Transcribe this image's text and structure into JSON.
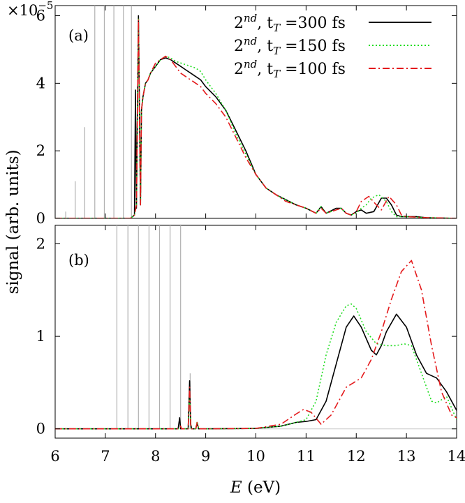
{
  "chart_data": [
    {
      "panel_label": "(a)",
      "type": "line",
      "multiplier_label": "×10",
      "multiplier_exp": "−5",
      "xlim": [
        6,
        14
      ],
      "ylim": [
        0,
        6.3
      ],
      "yticks": [
        "0",
        "2",
        "4",
        "6"
      ],
      "ylabel": "signal (arb. units)",
      "legend": {
        "placement": "top-right",
        "items": [
          {
            "prefix": "2",
            "sup": "nd",
            "sep": ", t",
            "sub": "T",
            "rest": " =300 fs",
            "color": "#000000",
            "dash": "solid"
          },
          {
            "prefix": "2",
            "sup": "nd",
            "sep": ", t",
            "sub": "T",
            "rest": " =150 fs",
            "color": "#22dd22",
            "dash": "dotted"
          },
          {
            "prefix": "2",
            "sup": "nd",
            "sep": ", t",
            "sub": "T",
            "rest": " =100 fs",
            "color": "#e41a1c",
            "dash": "dashdot"
          }
        ]
      },
      "gray_lines": [
        {
          "x": 6.21,
          "y": 0.2
        },
        {
          "x": 6.4,
          "y": 1.1
        },
        {
          "x": 6.59,
          "y": 2.7
        },
        {
          "x": 6.79,
          "y": 6.3
        },
        {
          "x": 6.98,
          "y": 6.3
        },
        {
          "x": 7.17,
          "y": 6.3
        },
        {
          "x": 7.36,
          "y": 6.3
        },
        {
          "x": 7.52,
          "y": 6.3
        }
      ],
      "series": [
        {
          "color": "#000000",
          "x": [
            6.0,
            7.5,
            7.58,
            7.6,
            7.62,
            7.66,
            7.7,
            7.72,
            7.75,
            7.8,
            7.85,
            7.9,
            8.0,
            8.1,
            8.2,
            8.3,
            8.4,
            8.5,
            8.6,
            8.7,
            8.8,
            8.9,
            9.0,
            9.2,
            9.4,
            9.6,
            9.8,
            10.0,
            10.2,
            10.4,
            10.6,
            10.8,
            11.0,
            11.2,
            11.3,
            11.4,
            11.6,
            11.7,
            11.8,
            11.9,
            12.0,
            12.1,
            12.2,
            12.35,
            12.5,
            12.6,
            12.7,
            12.8,
            12.9,
            13.0,
            13.2,
            13.4,
            14.0
          ],
          "y": [
            0.0,
            0.0,
            0.1,
            3.8,
            0.3,
            6.0,
            0.4,
            3.2,
            3.6,
            4.0,
            4.1,
            4.3,
            4.5,
            4.7,
            4.75,
            4.7,
            4.6,
            4.5,
            4.4,
            4.3,
            4.2,
            4.1,
            3.9,
            3.6,
            3.2,
            2.6,
            2.0,
            1.3,
            0.9,
            0.7,
            0.55,
            0.4,
            0.3,
            0.15,
            0.35,
            0.15,
            0.3,
            0.3,
            0.15,
            0.1,
            0.2,
            0.25,
            0.15,
            0.2,
            0.6,
            0.6,
            0.4,
            0.1,
            0.05,
            0.05,
            0.05,
            0.02,
            0.0
          ]
        },
        {
          "color": "#22dd22",
          "x": [
            6.0,
            7.5,
            7.58,
            7.62,
            7.66,
            7.7,
            7.72,
            7.75,
            7.8,
            7.85,
            7.9,
            8.0,
            8.1,
            8.2,
            8.3,
            8.4,
            8.5,
            8.6,
            8.7,
            8.8,
            8.9,
            9.0,
            9.2,
            9.4,
            9.6,
            9.8,
            10.0,
            10.2,
            10.4,
            10.6,
            10.8,
            11.0,
            11.2,
            11.3,
            11.4,
            11.6,
            11.7,
            11.8,
            11.9,
            12.0,
            12.1,
            12.2,
            12.3,
            12.45,
            12.6,
            12.7,
            12.8,
            13.0,
            13.4,
            14.0
          ],
          "y": [
            0.0,
            0.0,
            0.1,
            0.4,
            5.9,
            0.4,
            3.2,
            3.6,
            4.0,
            4.1,
            4.3,
            4.5,
            4.7,
            4.8,
            4.75,
            4.65,
            4.6,
            4.55,
            4.5,
            4.45,
            4.35,
            4.1,
            3.7,
            3.2,
            2.5,
            1.9,
            1.3,
            0.9,
            0.7,
            0.55,
            0.4,
            0.3,
            0.15,
            0.35,
            0.15,
            0.25,
            0.3,
            0.15,
            0.1,
            0.15,
            0.3,
            0.4,
            0.6,
            0.7,
            0.5,
            0.2,
            0.05,
            0.05,
            0.02,
            0.0
          ]
        },
        {
          "color": "#e41a1c",
          "x": [
            6.0,
            7.5,
            7.58,
            7.62,
            7.66,
            7.7,
            7.72,
            7.75,
            7.8,
            7.85,
            7.9,
            8.0,
            8.1,
            8.2,
            8.3,
            8.4,
            8.5,
            8.6,
            8.7,
            8.8,
            8.9,
            9.0,
            9.2,
            9.4,
            9.6,
            9.8,
            10.0,
            10.2,
            10.4,
            10.6,
            10.8,
            11.0,
            11.2,
            11.3,
            11.4,
            11.6,
            11.7,
            11.8,
            11.9,
            12.0,
            12.1,
            12.25,
            12.4,
            12.5,
            12.65,
            12.8,
            12.9,
            13.0,
            13.4,
            14.0
          ],
          "y": [
            0.0,
            0.0,
            0.1,
            0.4,
            5.9,
            0.4,
            3.2,
            3.6,
            4.0,
            4.1,
            4.3,
            4.6,
            4.7,
            4.8,
            4.7,
            4.5,
            4.3,
            4.2,
            4.1,
            4.0,
            3.9,
            3.7,
            3.4,
            3.0,
            2.4,
            1.8,
            1.3,
            0.9,
            0.7,
            0.5,
            0.4,
            0.3,
            0.15,
            0.3,
            0.15,
            0.25,
            0.3,
            0.15,
            0.1,
            0.2,
            0.5,
            0.65,
            0.4,
            0.25,
            0.65,
            0.4,
            0.1,
            0.05,
            0.02,
            0.0
          ]
        }
      ]
    },
    {
      "panel_label": "(b)",
      "type": "line",
      "xlim": [
        6,
        14
      ],
      "ylim": [
        -0.1,
        2.2
      ],
      "xticks": [
        "6",
        "7",
        "8",
        "9",
        "10",
        "11",
        "12",
        "13",
        "14"
      ],
      "yticks": [
        "0",
        "1",
        "2"
      ],
      "xlabel_var": "E",
      "xlabel_unit": " (eV)",
      "gray_lines": [
        {
          "x": 7.23,
          "y": 2.2
        },
        {
          "x": 7.45,
          "y": 2.2
        },
        {
          "x": 7.66,
          "y": 2.2
        },
        {
          "x": 7.87,
          "y": 2.2
        },
        {
          "x": 8.08,
          "y": 2.2
        },
        {
          "x": 8.29,
          "y": 2.2
        },
        {
          "x": 8.5,
          "y": 2.2
        },
        {
          "x": 8.69,
          "y": 0.6
        }
      ],
      "series": [
        {
          "color": "#000000",
          "x": [
            6.0,
            8.45,
            8.48,
            8.5,
            8.52,
            8.65,
            8.68,
            8.7,
            8.72,
            8.8,
            8.83,
            8.86,
            9.0,
            10.0,
            10.5,
            10.8,
            11.0,
            11.2,
            11.4,
            11.6,
            11.8,
            11.95,
            12.1,
            12.3,
            12.4,
            12.5,
            12.6,
            12.8,
            13.0,
            13.2,
            13.4,
            13.6,
            13.8,
            14.0
          ],
          "y": [
            0.0,
            0.0,
            0.12,
            0.0,
            0.0,
            0.0,
            0.52,
            0.05,
            0.0,
            0.0,
            0.06,
            0.0,
            0.0,
            0.005,
            0.03,
            0.07,
            0.08,
            0.1,
            0.3,
            0.7,
            1.1,
            1.22,
            1.1,
            0.85,
            0.8,
            0.9,
            1.05,
            1.24,
            1.1,
            0.8,
            0.6,
            0.55,
            0.4,
            0.2
          ]
        },
        {
          "color": "#22dd22",
          "x": [
            6.0,
            8.45,
            8.5,
            8.52,
            8.65,
            8.68,
            8.7,
            8.72,
            8.8,
            8.83,
            8.86,
            9.0,
            10.0,
            10.5,
            10.8,
            11.0,
            11.2,
            11.4,
            11.6,
            11.8,
            11.9,
            12.0,
            12.2,
            12.4,
            12.6,
            12.8,
            12.95,
            13.1,
            13.3,
            13.5,
            13.6,
            13.8,
            14.0
          ],
          "y": [
            0.0,
            0.0,
            0.03,
            0.0,
            0.0,
            0.4,
            0.05,
            0.0,
            0.0,
            0.08,
            0.0,
            0.0,
            0.005,
            0.03,
            0.07,
            0.1,
            0.3,
            0.8,
            1.15,
            1.33,
            1.35,
            1.3,
            1.05,
            0.92,
            0.9,
            0.9,
            0.92,
            0.9,
            0.6,
            0.3,
            0.28,
            0.35,
            0.1
          ]
        },
        {
          "color": "#e41a1c",
          "x": [
            6.0,
            8.45,
            8.5,
            8.52,
            8.65,
            8.68,
            8.7,
            8.72,
            8.8,
            8.83,
            8.86,
            9.0,
            10.0,
            10.5,
            10.8,
            10.95,
            11.1,
            11.3,
            11.5,
            11.8,
            11.95,
            12.1,
            12.3,
            12.5,
            12.7,
            12.9,
            13.1,
            13.3,
            13.5,
            13.7,
            13.9,
            14.0
          ],
          "y": [
            0.0,
            0.0,
            0.03,
            0.0,
            0.0,
            0.45,
            0.05,
            0.0,
            0.0,
            0.07,
            0.0,
            0.0,
            0.005,
            0.05,
            0.16,
            0.21,
            0.18,
            0.05,
            0.15,
            0.45,
            0.5,
            0.55,
            0.75,
            1.05,
            1.4,
            1.7,
            1.82,
            1.5,
            0.9,
            0.4,
            0.15,
            0.12
          ]
        }
      ]
    }
  ]
}
